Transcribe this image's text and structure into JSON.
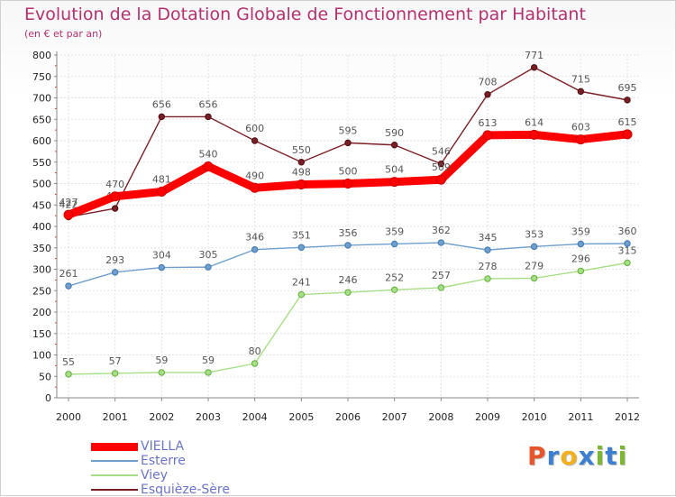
{
  "header": {
    "title": "Evolution de la Dotation Globale de Fonctionnement par Habitant",
    "subtitle": "(en € et par an)"
  },
  "logo": {
    "letters": [
      "P",
      "r",
      "o",
      "x",
      "i",
      "t",
      "i"
    ],
    "colors": [
      "#e8542a",
      "#3d7fd1",
      "#f2b01e",
      "#3d7fd1",
      "#7cb82f",
      "#3d7fd1",
      "#7cb82f"
    ]
  },
  "chart_data": {
    "type": "line",
    "title": "Evolution de la Dotation Globale de Fonctionnement par Habitant",
    "subtitle": "(en € et par an)",
    "x": [
      2000,
      2001,
      2002,
      2003,
      2004,
      2005,
      2006,
      2007,
      2008,
      2009,
      2010,
      2011,
      2012
    ],
    "ylim": [
      0,
      800
    ],
    "yticks": [
      0,
      50,
      100,
      150,
      200,
      250,
      300,
      350,
      400,
      450,
      500,
      550,
      600,
      650,
      700,
      750,
      800
    ],
    "grid": true,
    "legend_position": "bottom-left",
    "series": [
      {
        "name": "VIELLA",
        "color": "#ff0000",
        "values": [
          427,
          470,
          481,
          540,
          490,
          498,
          500,
          504,
          509,
          613,
          614,
          603,
          615
        ]
      },
      {
        "name": "Esterre",
        "color": "#6f9fcc",
        "values": [
          261,
          293,
          304,
          305,
          346,
          351,
          356,
          359,
          362,
          345,
          353,
          359,
          360
        ]
      },
      {
        "name": "Viey",
        "color": "#a6df86",
        "values": [
          55,
          57,
          59,
          59,
          80,
          241,
          246,
          252,
          257,
          278,
          279,
          296,
          315
        ]
      },
      {
        "name": "Esquièze-Sère",
        "color": "#7a1f25",
        "values": [
          422,
          442,
          656,
          656,
          600,
          550,
          595,
          590,
          546,
          708,
          771,
          715,
          695
        ]
      }
    ]
  }
}
